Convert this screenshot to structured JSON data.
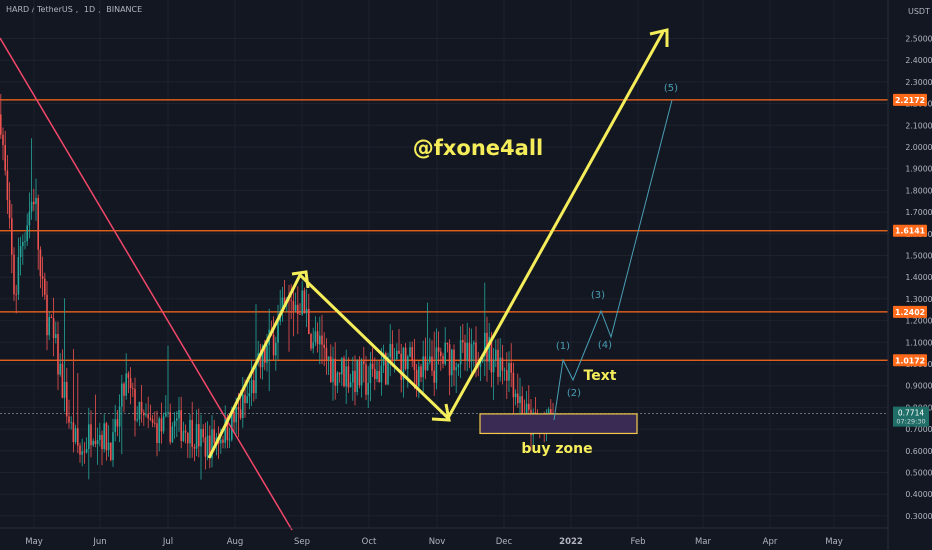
{
  "header": {
    "pair": "HARD / TetherUS",
    "interval": "1D",
    "exchange": "BINANCE"
  },
  "chart_data": {
    "type": "candlestick",
    "currency": "USDT",
    "ylim": [
      0.25,
      2.6
    ],
    "y_ticks": [
      "2.5000",
      "2.4000",
      "2.3000",
      "2.2000",
      "2.1000",
      "2.0000",
      "1.9000",
      "1.8000",
      "1.7000",
      "1.6000",
      "1.5000",
      "1.4000",
      "1.3000",
      "1.2000",
      "1.1000",
      "1.0000",
      "0.9000",
      "0.8000",
      "0.7000",
      "0.6000",
      "0.5000",
      "0.4000",
      "0.3000"
    ],
    "x_ticks": [
      "May",
      "Jun",
      "Jul",
      "Aug",
      "Sep",
      "Oct",
      "Nov",
      "Dec",
      "2022",
      "Feb",
      "Mar",
      "Apr",
      "May"
    ],
    "horizontal_levels": [
      {
        "label": "2.2172",
        "value": 2.2172
      },
      {
        "label": "1.6141",
        "value": 1.6141
      },
      {
        "label": "1.2402",
        "value": 1.2402
      },
      {
        "label": "1.0172",
        "value": 1.0172
      },
      {
        "label": "0.7551",
        "value": 0.7551
      }
    ],
    "current_price": {
      "label": "0.7714",
      "countdown": "07:29:30",
      "value": 0.7714
    },
    "annotations": {
      "watermark": "@fxone4all",
      "text_label": "Text",
      "buy_zone_label": "buy zone",
      "wave_labels": [
        "(1)",
        "(2)",
        "(3)",
        "(4)",
        "(5)"
      ]
    },
    "buy_zone": {
      "from": 0.68,
      "to": 0.77
    },
    "colors": {
      "background": "#131722",
      "up": "#26a69a",
      "down": "#ef5350",
      "level": "#ff6a1a",
      "arrow": "#f5ee5a",
      "trendline": "#f2476a",
      "wave": "#4a9fb5",
      "buy_zone_fill": "#3a2b54",
      "buy_zone_border": "#f2c94c"
    }
  }
}
